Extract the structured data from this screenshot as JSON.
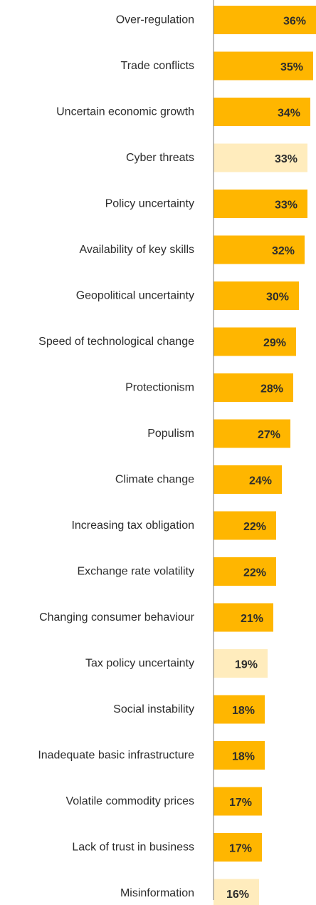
{
  "chart_data": {
    "type": "bar",
    "orientation": "horizontal",
    "categories": [
      "Over-regulation",
      "Trade conflicts",
      "Uncertain economic growth",
      "Cyber threats",
      "Policy uncertainty",
      "Availability of key skills",
      "Geopolitical uncertainty",
      "Speed of technological change",
      "Protectionism",
      "Populism",
      "Climate change",
      "Increasing tax obligation",
      "Exchange rate volatility",
      "Changing consumer behaviour",
      "Tax policy uncertainty",
      "Social instability",
      "Inadequate basic infrastructure",
      "Volatile commodity prices",
      "Lack of trust in business",
      "Misinformation"
    ],
    "values": [
      36,
      35,
      34,
      33,
      33,
      32,
      30,
      29,
      28,
      27,
      24,
      22,
      22,
      21,
      19,
      18,
      18,
      17,
      17,
      16
    ],
    "value_labels": [
      "36%",
      "35%",
      "34%",
      "33%",
      "33%",
      "32%",
      "30%",
      "29%",
      "28%",
      "27%",
      "24%",
      "22%",
      "22%",
      "21%",
      "19%",
      "18%",
      "18%",
      "17%",
      "17%",
      "16%"
    ],
    "highlighted": [
      false,
      false,
      false,
      true,
      false,
      false,
      false,
      false,
      false,
      false,
      false,
      false,
      false,
      false,
      true,
      false,
      false,
      false,
      false,
      true
    ],
    "unit": "%",
    "colors": {
      "bar": "#FFB600",
      "bar_highlight": "#FFECBD",
      "axis": "#7d7d7d",
      "text": "#2d2d2d"
    },
    "title": "",
    "xlabel": "",
    "ylabel": "",
    "grid": false,
    "legend": "none"
  }
}
